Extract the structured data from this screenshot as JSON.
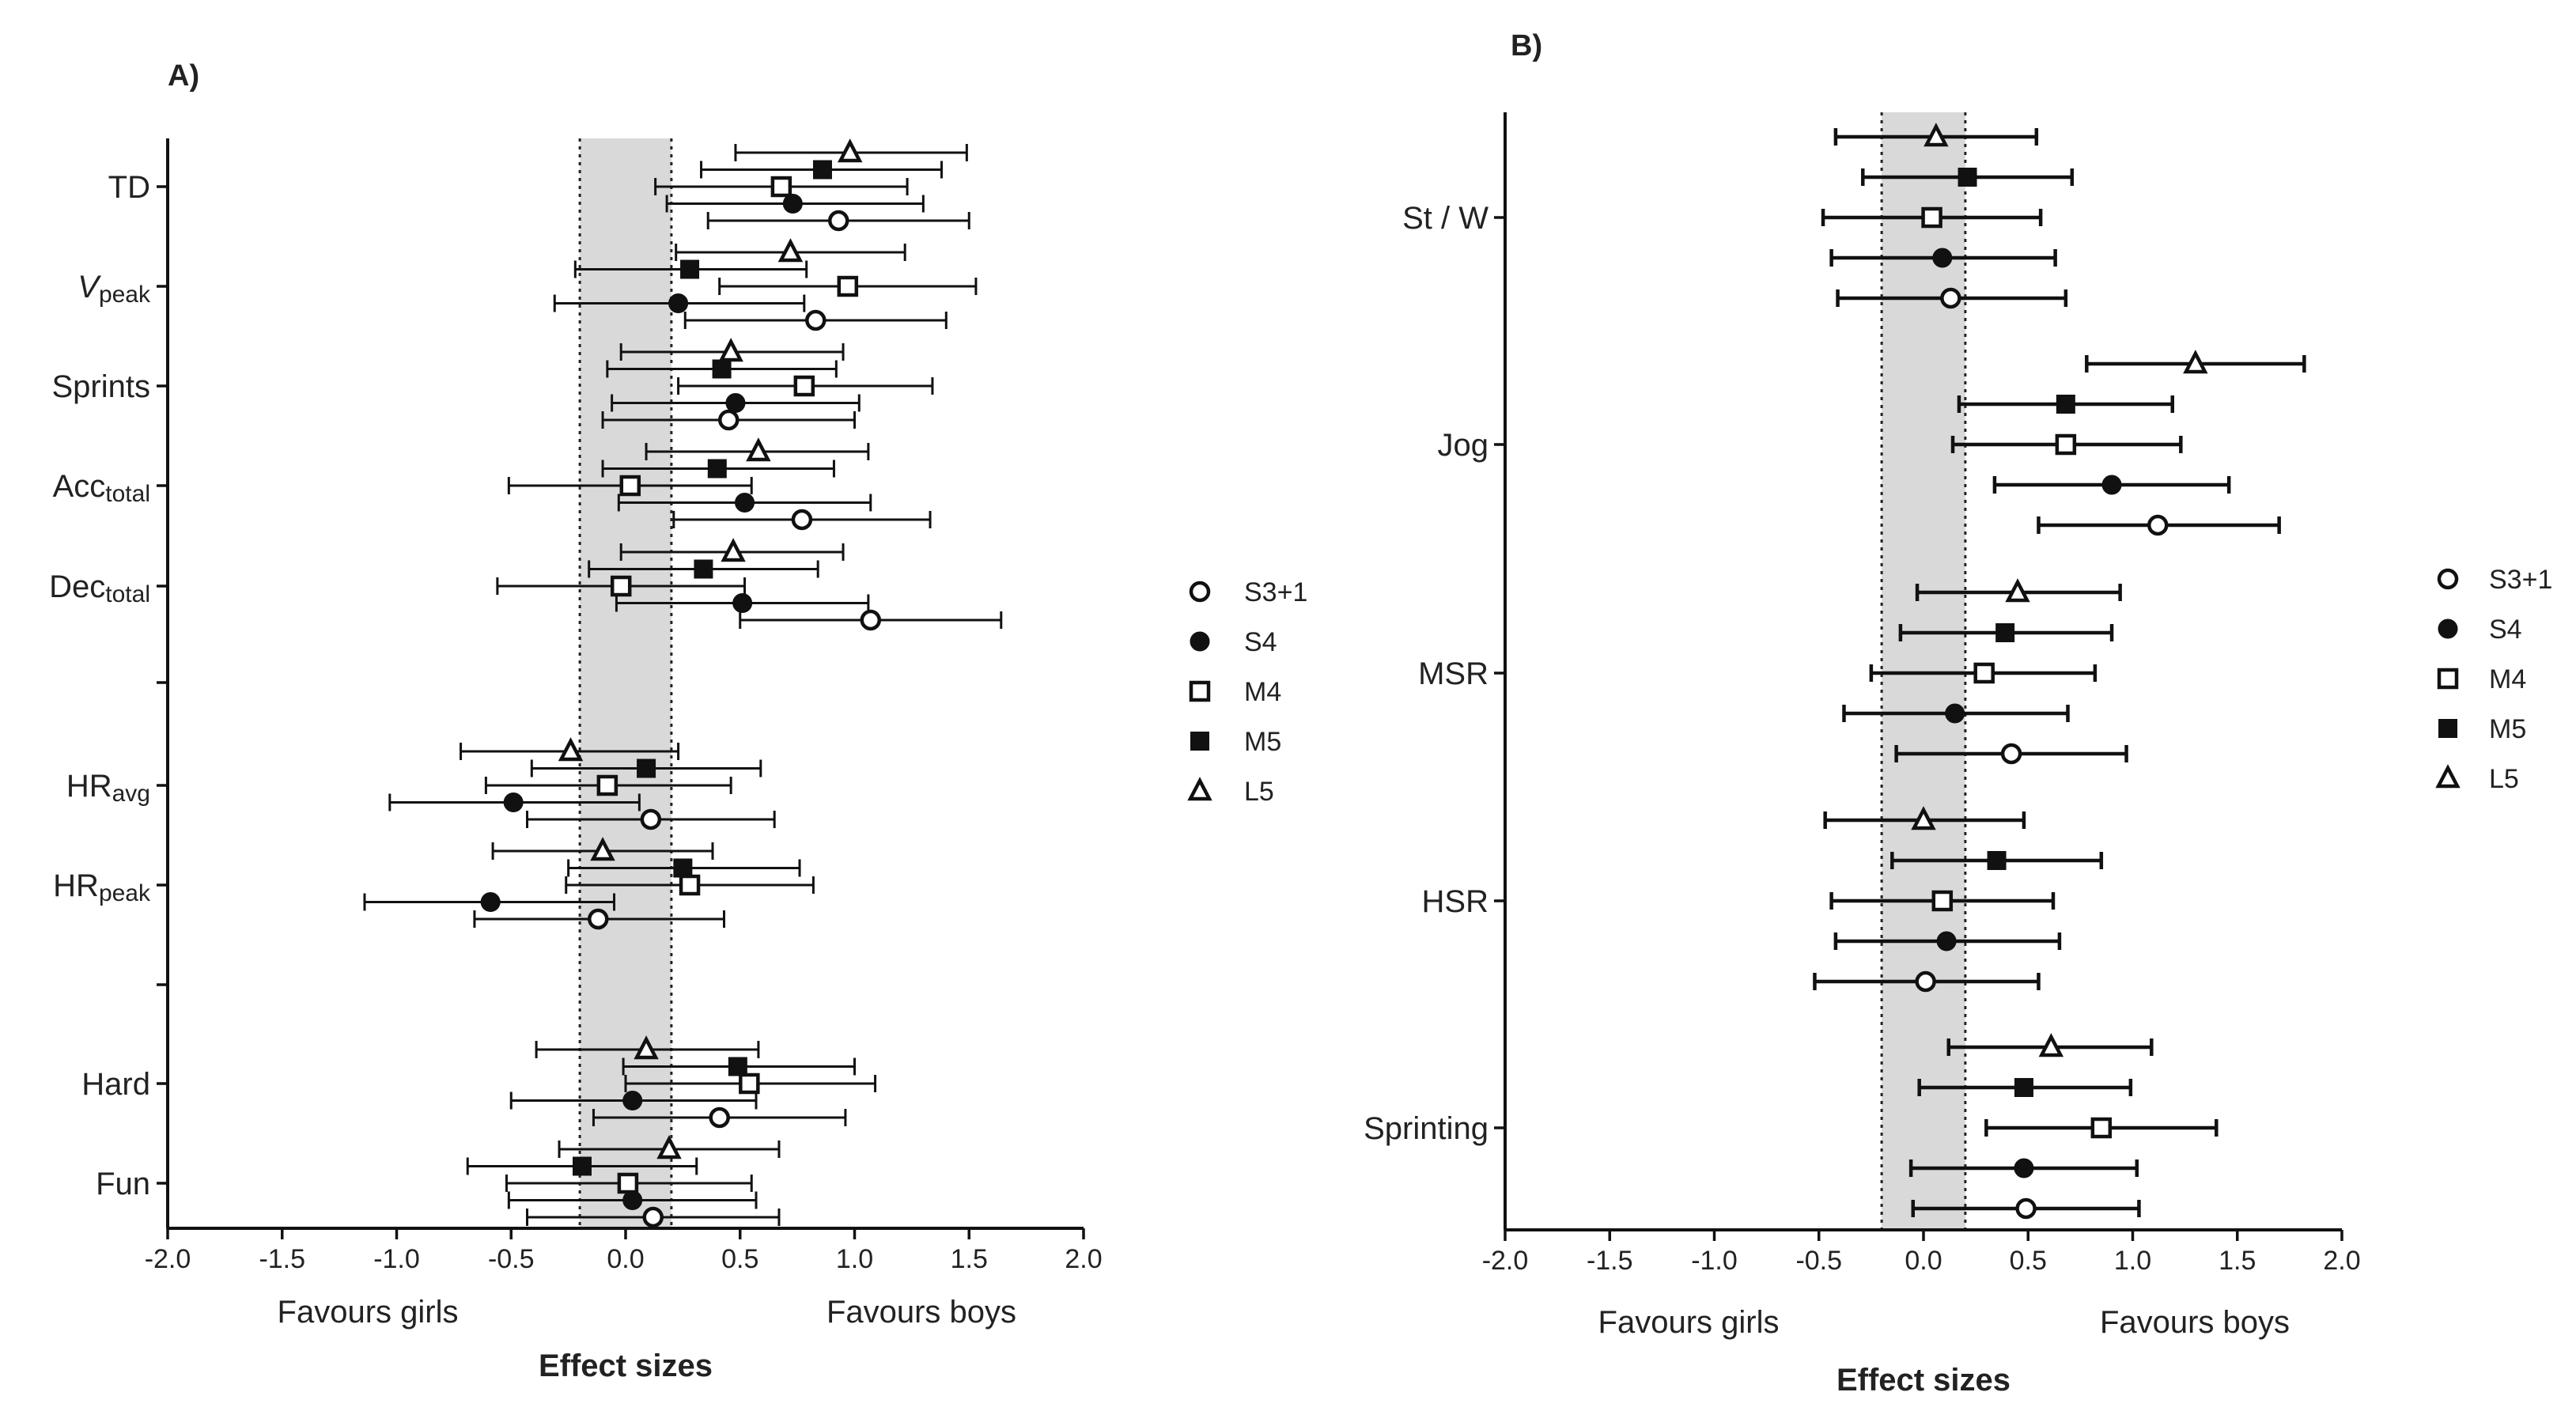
{
  "chart_data": [
    {
      "panel": "A)",
      "type": "forest",
      "xlabel": "Effect sizes",
      "favours_left": "Favours girls",
      "favours_right": "Favours boys",
      "xlim": [
        -2.0,
        2.0
      ],
      "xticks": [
        "-2.0",
        "-1.5",
        "-1.0",
        "-0.5",
        "0.0",
        "0.5",
        "1.0",
        "1.5",
        "2.0"
      ],
      "trivial_band": [
        -0.2,
        0.2
      ],
      "legend_position": "right",
      "series": [
        {
          "name": "S3+1",
          "marker": "open-circle"
        },
        {
          "name": "S4",
          "marker": "filled-circle"
        },
        {
          "name": "M4",
          "marker": "open-square"
        },
        {
          "name": "M5",
          "marker": "filled-square"
        },
        {
          "name": "L5",
          "marker": "open-triangle"
        }
      ],
      "groups": [
        {
          "label": "TD",
          "sub": "",
          "italic": false,
          "points": [
            {
              "series": "L5",
              "es": 0.98,
              "lo": 0.48,
              "hi": 1.49
            },
            {
              "series": "M5",
              "es": 0.86,
              "lo": 0.33,
              "hi": 1.38
            },
            {
              "series": "M4",
              "es": 0.68,
              "lo": 0.13,
              "hi": 1.23
            },
            {
              "series": "S4",
              "es": 0.73,
              "lo": 0.18,
              "hi": 1.3
            },
            {
              "series": "S3+1",
              "es": 0.93,
              "lo": 0.36,
              "hi": 1.5
            }
          ]
        },
        {
          "label": "V",
          "sub": "peak",
          "italic": true,
          "points": [
            {
              "series": "L5",
              "es": 0.72,
              "lo": 0.22,
              "hi": 1.22
            },
            {
              "series": "M5",
              "es": 0.28,
              "lo": -0.22,
              "hi": 0.79
            },
            {
              "series": "M4",
              "es": 0.97,
              "lo": 0.41,
              "hi": 1.53
            },
            {
              "series": "S4",
              "es": 0.23,
              "lo": -0.31,
              "hi": 0.78
            },
            {
              "series": "S3+1",
              "es": 0.83,
              "lo": 0.26,
              "hi": 1.4
            }
          ]
        },
        {
          "label": "Sprints",
          "sub": "",
          "italic": false,
          "points": [
            {
              "series": "L5",
              "es": 0.46,
              "lo": -0.02,
              "hi": 0.95
            },
            {
              "series": "M5",
              "es": 0.42,
              "lo": -0.08,
              "hi": 0.92
            },
            {
              "series": "M4",
              "es": 0.78,
              "lo": 0.23,
              "hi": 1.34
            },
            {
              "series": "S4",
              "es": 0.48,
              "lo": -0.06,
              "hi": 1.02
            },
            {
              "series": "S3+1",
              "es": 0.45,
              "lo": -0.1,
              "hi": 1.0
            }
          ]
        },
        {
          "label": "Acc",
          "sub": "total",
          "italic": false,
          "points": [
            {
              "series": "L5",
              "es": 0.58,
              "lo": 0.09,
              "hi": 1.06
            },
            {
              "series": "M5",
              "es": 0.4,
              "lo": -0.1,
              "hi": 0.91
            },
            {
              "series": "M4",
              "es": 0.02,
              "lo": -0.51,
              "hi": 0.55
            },
            {
              "series": "S4",
              "es": 0.52,
              "lo": -0.03,
              "hi": 1.07
            },
            {
              "series": "S3+1",
              "es": 0.77,
              "lo": 0.21,
              "hi": 1.33
            }
          ]
        },
        {
          "label": "Dec",
          "sub": "total",
          "italic": false,
          "points": [
            {
              "series": "L5",
              "es": 0.47,
              "lo": -0.02,
              "hi": 0.95
            },
            {
              "series": "M5",
              "es": 0.34,
              "lo": -0.16,
              "hi": 0.84
            },
            {
              "series": "M4",
              "es": -0.02,
              "lo": -0.56,
              "hi": 0.52
            },
            {
              "series": "S4",
              "es": 0.51,
              "lo": -0.04,
              "hi": 1.06
            },
            {
              "series": "S3+1",
              "es": 1.07,
              "lo": 0.5,
              "hi": 1.64
            }
          ]
        },
        {
          "label": "HR",
          "sub": "avg",
          "italic": false,
          "points": [
            {
              "series": "L5",
              "es": -0.24,
              "lo": -0.72,
              "hi": 0.23
            },
            {
              "series": "M5",
              "es": 0.09,
              "lo": -0.41,
              "hi": 0.59
            },
            {
              "series": "M4",
              "es": -0.08,
              "lo": -0.61,
              "hi": 0.46
            },
            {
              "series": "S4",
              "es": -0.49,
              "lo": -1.03,
              "hi": 0.06
            },
            {
              "series": "S3+1",
              "es": 0.11,
              "lo": -0.43,
              "hi": 0.65
            }
          ]
        },
        {
          "label": "HR",
          "sub": "peak",
          "italic": false,
          "points": [
            {
              "series": "L5",
              "es": -0.1,
              "lo": -0.58,
              "hi": 0.38
            },
            {
              "series": "M5",
              "es": 0.25,
              "lo": -0.25,
              "hi": 0.76
            },
            {
              "series": "M4",
              "es": 0.28,
              "lo": -0.26,
              "hi": 0.82
            },
            {
              "series": "S4",
              "es": -0.59,
              "lo": -1.14,
              "hi": -0.05
            },
            {
              "series": "S3+1",
              "es": -0.12,
              "lo": -0.66,
              "hi": 0.43
            }
          ]
        },
        {
          "label": "Hard",
          "sub": "",
          "italic": false,
          "points": [
            {
              "series": "L5",
              "es": 0.09,
              "lo": -0.39,
              "hi": 0.58
            },
            {
              "series": "M5",
              "es": 0.49,
              "lo": -0.01,
              "hi": 1.0
            },
            {
              "series": "M4",
              "es": 0.54,
              "lo": 0.0,
              "hi": 1.09
            },
            {
              "series": "S4",
              "es": 0.03,
              "lo": -0.5,
              "hi": 0.57
            },
            {
              "series": "S3+1",
              "es": 0.41,
              "lo": -0.14,
              "hi": 0.96
            }
          ]
        },
        {
          "label": "Fun",
          "sub": "",
          "italic": false,
          "points": [
            {
              "series": "L5",
              "es": 0.19,
              "lo": -0.29,
              "hi": 0.67
            },
            {
              "series": "M5",
              "es": -0.19,
              "lo": -0.69,
              "hi": 0.31
            },
            {
              "series": "M4",
              "es": 0.01,
              "lo": -0.52,
              "hi": 0.55
            },
            {
              "series": "S4",
              "es": 0.03,
              "lo": -0.51,
              "hi": 0.57
            },
            {
              "series": "S3+1",
              "es": 0.12,
              "lo": -0.43,
              "hi": 0.67
            }
          ]
        }
      ]
    },
    {
      "panel": "B)",
      "type": "forest",
      "xlabel": "Effect sizes",
      "favours_left": "Favours girls",
      "favours_right": "Favours boys",
      "xlim": [
        -2.0,
        2.0
      ],
      "xticks": [
        "-2.0",
        "-1.5",
        "-1.0",
        "-0.5",
        "0.0",
        "0.5",
        "1.0",
        "1.5",
        "2.0"
      ],
      "trivial_band": [
        -0.2,
        0.2
      ],
      "legend_position": "right",
      "series": [
        {
          "name": "S3+1",
          "marker": "open-circle"
        },
        {
          "name": "S4",
          "marker": "filled-circle"
        },
        {
          "name": "M4",
          "marker": "open-square"
        },
        {
          "name": "M5",
          "marker": "filled-square"
        },
        {
          "name": "L5",
          "marker": "open-triangle"
        }
      ],
      "groups": [
        {
          "label": "St / W",
          "sub": "",
          "italic": false,
          "points": [
            {
              "series": "L5",
              "es": 0.06,
              "lo": -0.42,
              "hi": 0.54
            },
            {
              "series": "M5",
              "es": 0.21,
              "lo": -0.29,
              "hi": 0.71
            },
            {
              "series": "M4",
              "es": 0.04,
              "lo": -0.48,
              "hi": 0.56
            },
            {
              "series": "S4",
              "es": 0.09,
              "lo": -0.44,
              "hi": 0.63
            },
            {
              "series": "S3+1",
              "es": 0.13,
              "lo": -0.41,
              "hi": 0.68
            }
          ]
        },
        {
          "label": "Jog",
          "sub": "",
          "italic": false,
          "points": [
            {
              "series": "L5",
              "es": 1.3,
              "lo": 0.78,
              "hi": 1.82
            },
            {
              "series": "M5",
              "es": 0.68,
              "lo": 0.17,
              "hi": 1.19
            },
            {
              "series": "M4",
              "es": 0.68,
              "lo": 0.14,
              "hi": 1.23
            },
            {
              "series": "S4",
              "es": 0.9,
              "lo": 0.34,
              "hi": 1.46
            },
            {
              "series": "S3+1",
              "es": 1.12,
              "lo": 0.55,
              "hi": 1.7
            }
          ]
        },
        {
          "label": "MSR",
          "sub": "",
          "italic": false,
          "points": [
            {
              "series": "L5",
              "es": 0.45,
              "lo": -0.03,
              "hi": 0.94
            },
            {
              "series": "M5",
              "es": 0.39,
              "lo": -0.11,
              "hi": 0.9
            },
            {
              "series": "M4",
              "es": 0.29,
              "lo": -0.25,
              "hi": 0.82
            },
            {
              "series": "S4",
              "es": 0.15,
              "lo": -0.38,
              "hi": 0.69
            },
            {
              "series": "S3+1",
              "es": 0.42,
              "lo": -0.13,
              "hi": 0.97
            }
          ]
        },
        {
          "label": "HSR",
          "sub": "",
          "italic": false,
          "points": [
            {
              "series": "L5",
              "es": 0.0,
              "lo": -0.47,
              "hi": 0.48
            },
            {
              "series": "M5",
              "es": 0.35,
              "lo": -0.15,
              "hi": 0.85
            },
            {
              "series": "M4",
              "es": 0.09,
              "lo": -0.44,
              "hi": 0.62
            },
            {
              "series": "S4",
              "es": 0.11,
              "lo": -0.42,
              "hi": 0.65
            },
            {
              "series": "S3+1",
              "es": 0.01,
              "lo": -0.52,
              "hi": 0.55
            }
          ]
        },
        {
          "label": "Sprinting",
          "sub": "",
          "italic": false,
          "points": [
            {
              "series": "L5",
              "es": 0.61,
              "lo": 0.12,
              "hi": 1.09
            },
            {
              "series": "M5",
              "es": 0.48,
              "lo": -0.02,
              "hi": 0.99
            },
            {
              "series": "M4",
              "es": 0.85,
              "lo": 0.3,
              "hi": 1.4
            },
            {
              "series": "S4",
              "es": 0.48,
              "lo": -0.06,
              "hi": 1.02
            },
            {
              "series": "S3+1",
              "es": 0.49,
              "lo": -0.05,
              "hi": 1.03
            }
          ]
        }
      ]
    }
  ]
}
